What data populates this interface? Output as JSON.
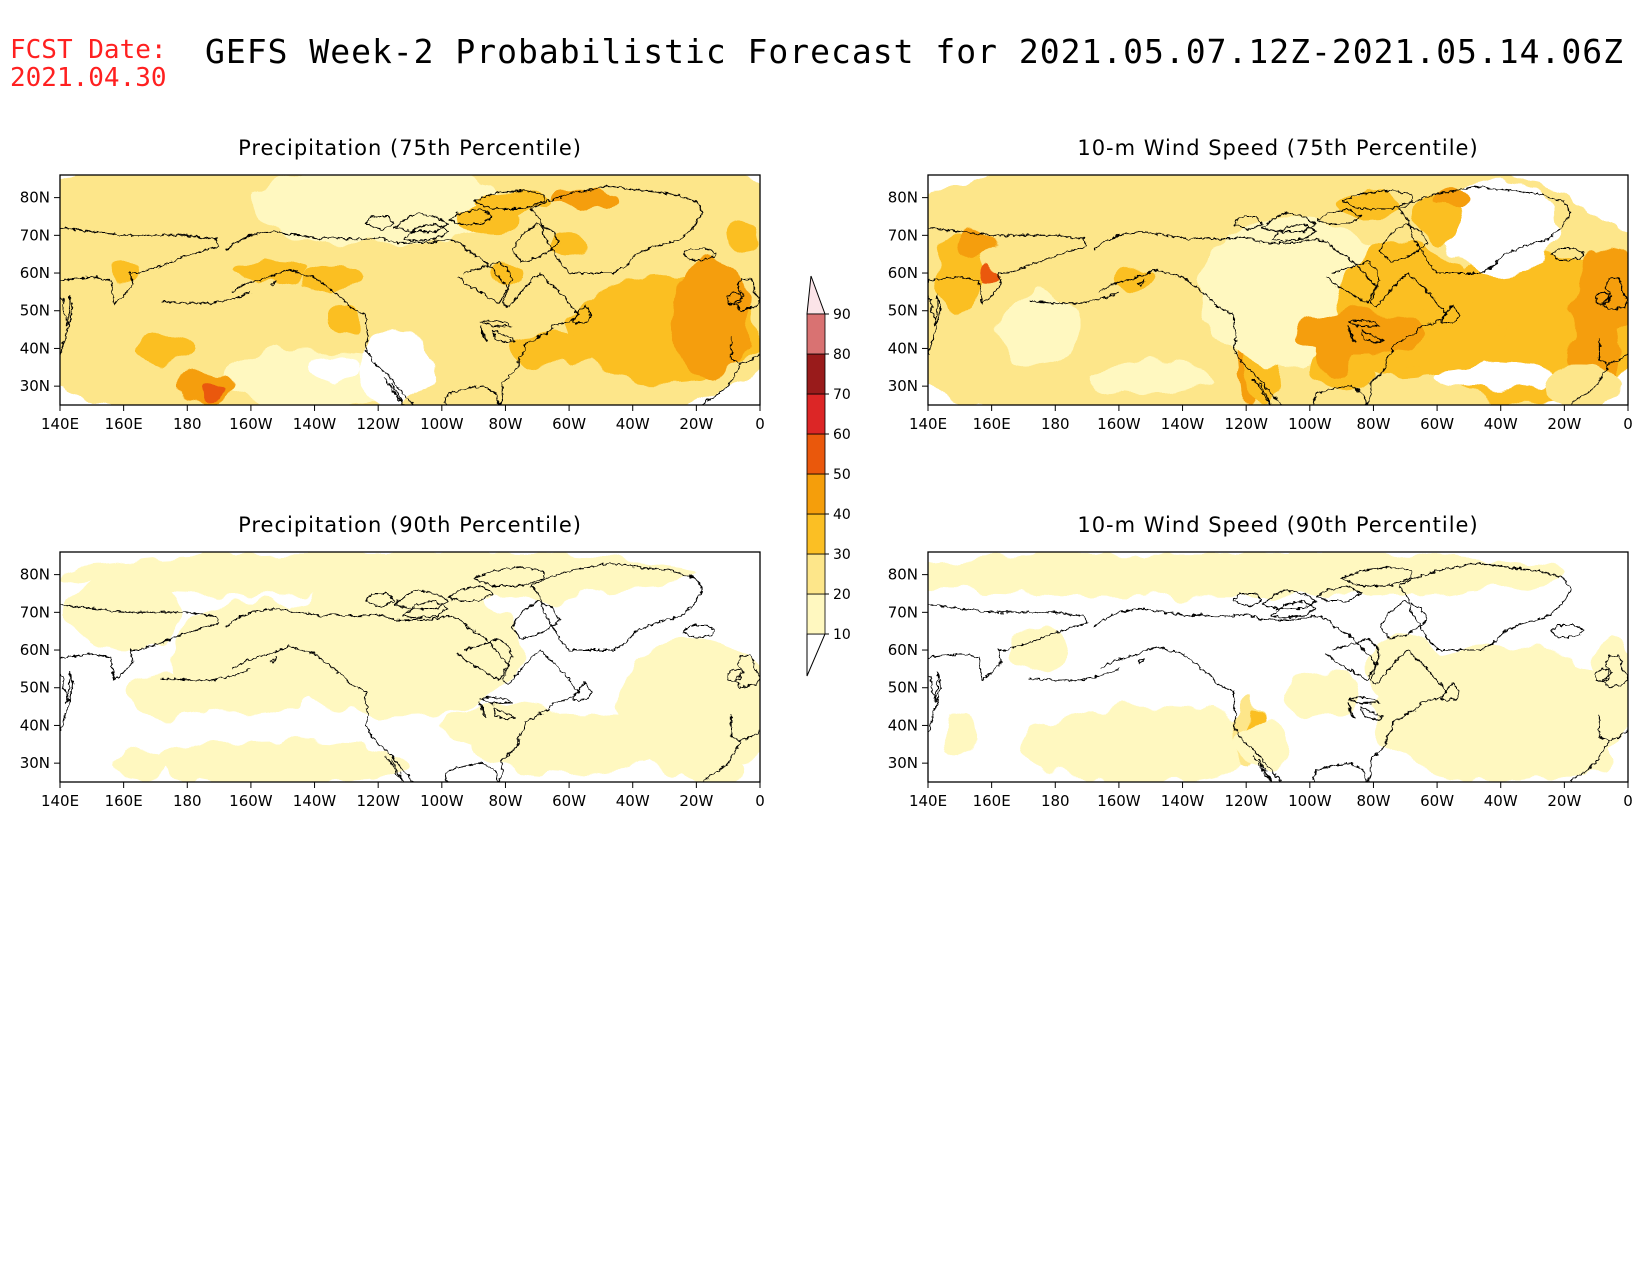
{
  "header": {
    "fcst_label": "FCST Date:",
    "fcst_date": "2021.04.30",
    "title": "GEFS Week-2 Probabilistic Forecast for 2021.05.07.12Z-2021.05.14.06Z"
  },
  "axes": {
    "lon_ticks": [
      "140E",
      "160E",
      "180",
      "160W",
      "140W",
      "120W",
      "100W",
      "80W",
      "60W",
      "40W",
      "20W",
      "0"
    ],
    "lat_ticks": [
      "80N",
      "70N",
      "60N",
      "50N",
      "40N",
      "30N"
    ]
  },
  "colorbar": {
    "levels": [
      "10",
      "20",
      "30",
      "40",
      "50",
      "60",
      "70",
      "80",
      "90"
    ],
    "colors": [
      "#fff8c0",
      "#fde68a",
      "#fbbf24",
      "#f59e0b",
      "#ea580c",
      "#dc2626",
      "#991b1b",
      "#d97272",
      "#f4b8c0",
      "#fbe4e8"
    ]
  },
  "panels": [
    {
      "id": "precip-75",
      "title": "Precipitation (75th Percentile)"
    },
    {
      "id": "wind-75",
      "title": "10-m Wind Speed (75th Percentile)"
    },
    {
      "id": "precip-90",
      "title": "Precipitation (90th Percentile)"
    },
    {
      "id": "wind-90",
      "title": "10-m Wind Speed (90th Percentile)"
    }
  ]
}
